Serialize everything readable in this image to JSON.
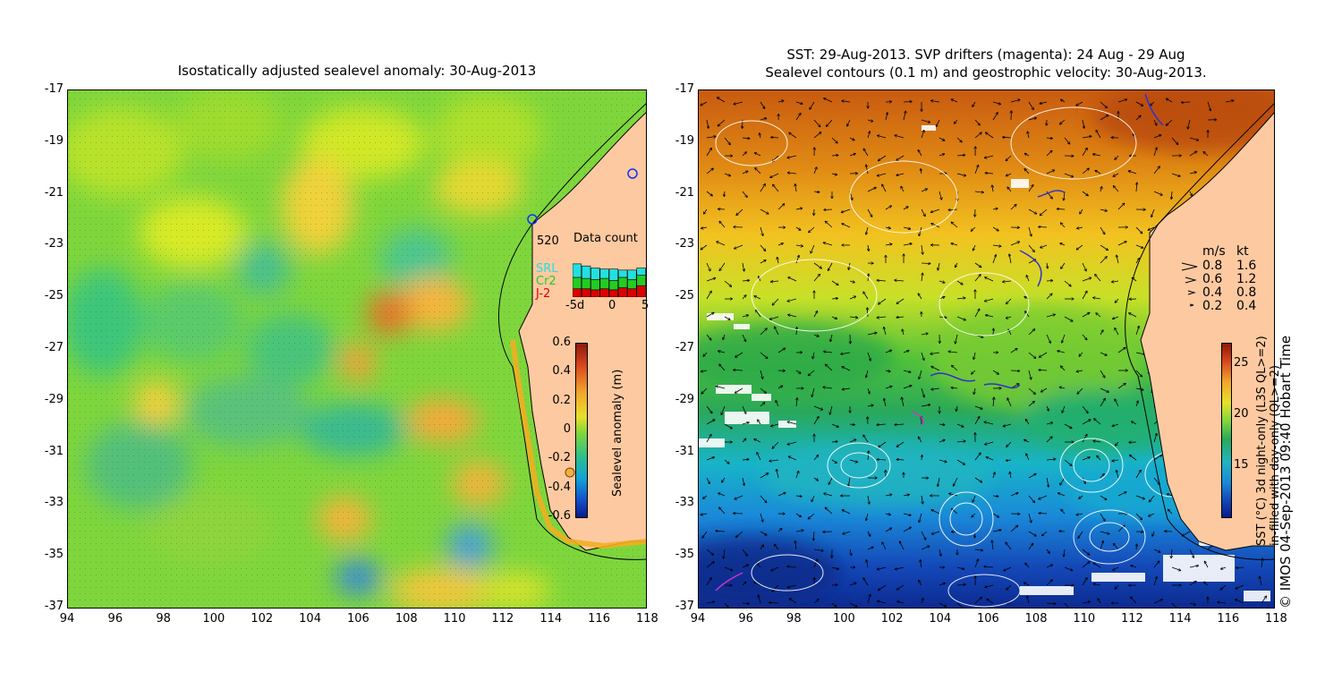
{
  "left_panel": {
    "title": "Isostatically adjusted sealevel anomaly: 30-Aug-2013",
    "x_ticks": [
      "94",
      "96",
      "98",
      "100",
      "102",
      "104",
      "106",
      "108",
      "110",
      "112",
      "114",
      "116",
      "118"
    ],
    "y_ticks": [
      "-17",
      "-19",
      "-21",
      "-23",
      "-25",
      "-27",
      "-29",
      "-31",
      "-33",
      "-35",
      "-37"
    ],
    "colorbar": {
      "label": "Sealevel anomaly (m)",
      "ticks": [
        "0.6",
        "0.4",
        "0.2",
        "0",
        "-0.2",
        "-0.4",
        "-0.6"
      ],
      "range": [
        -0.6,
        0.6
      ]
    },
    "data_count": {
      "title": "Data count",
      "max_label": "520",
      "x_ticks": [
        "-5d",
        "0",
        "5"
      ],
      "legend": [
        {
          "name": "SRL",
          "color": "#22e0e0"
        },
        {
          "name": "Cr2",
          "color": "#22cc22"
        },
        {
          "name": "J-2",
          "color": "#dd0000"
        }
      ],
      "bars": [
        {
          "SRL": 0.26,
          "Cr2": 0.22,
          "J-2": 0.16
        },
        {
          "SRL": 0.24,
          "Cr2": 0.2,
          "J-2": 0.16
        },
        {
          "SRL": 0.22,
          "Cr2": 0.2,
          "J-2": 0.14
        },
        {
          "SRL": 0.18,
          "Cr2": 0.2,
          "J-2": 0.16
        },
        {
          "SRL": 0.22,
          "Cr2": 0.18,
          "J-2": 0.14
        },
        {
          "SRL": 0.14,
          "Cr2": 0.2,
          "J-2": 0.18
        },
        {
          "SRL": 0.18,
          "Cr2": 0.18,
          "J-2": 0.16
        },
        {
          "SRL": 0.14,
          "Cr2": 0.2,
          "J-2": 0.22
        }
      ]
    }
  },
  "right_panel": {
    "title_line1": "SST: 29-Aug-2013. SVP drifters (magenta): 24 Aug - 29 Aug",
    "title_line2": "Sealevel contours (0.1 m) and geostrophic velocity: 30-Aug-2013.",
    "x_ticks": [
      "94",
      "96",
      "98",
      "100",
      "102",
      "104",
      "106",
      "108",
      "110",
      "112",
      "114",
      "116",
      "118"
    ],
    "y_ticks": [
      "-17",
      "-19",
      "-21",
      "-23",
      "-25",
      "-27",
      "-29",
      "-31",
      "-33",
      "-35",
      "-37"
    ],
    "velocity_legend": {
      "header_ms": "m/s",
      "header_kt": "kt",
      "rows": [
        {
          "ms": "0.8",
          "kt": "1.6"
        },
        {
          "ms": "0.6",
          "kt": "1.2"
        },
        {
          "ms": "0.4",
          "kt": "0.8"
        },
        {
          "ms": "0.2",
          "kt": "0.4"
        }
      ]
    },
    "colorbar": {
      "ticks": [
        "25",
        "20",
        "15"
      ],
      "range": [
        10,
        27
      ],
      "label_line1": "SST (°C) 3d night-only (L3S QL>=2)",
      "label_line2": "in-filled with day-only (QL>=2)"
    }
  },
  "credit": "© IMOS 04-Sep-2013 09:40 Hobart Time"
}
